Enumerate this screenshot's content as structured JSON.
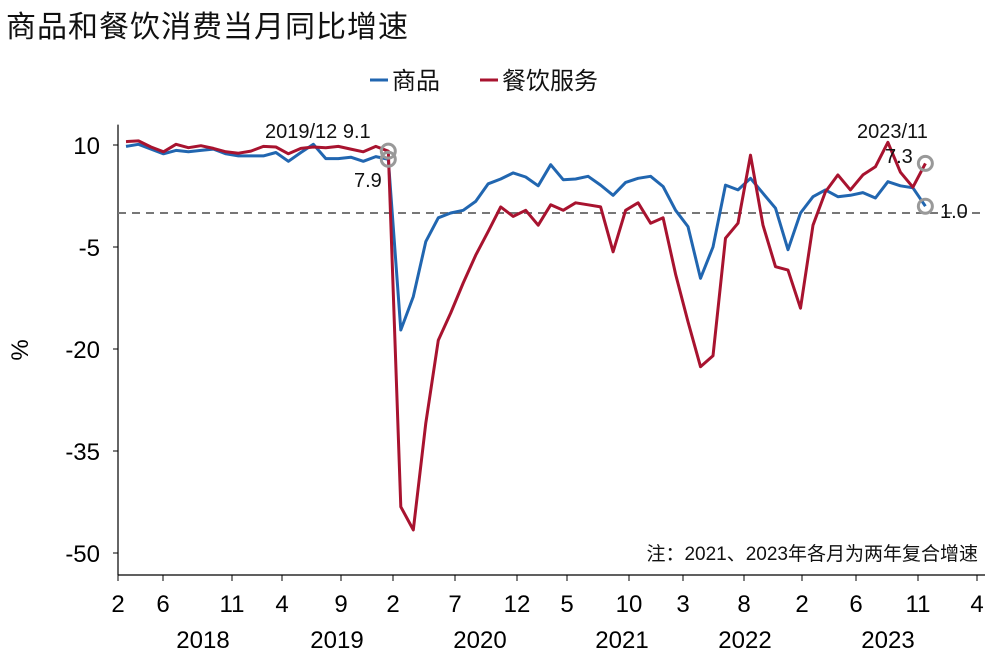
{
  "title": "商品和餐饮消费当月同比增速",
  "chart_data": {
    "type": "line",
    "title": "商品和餐饮消费当月同比增速",
    "ylabel": "%",
    "ylim": [
      -53,
      13
    ],
    "yticks": [
      10,
      -5,
      -20,
      -35,
      -50
    ],
    "ytick_labels": [
      "10",
      "-5",
      "-20",
      "-35",
      "-50"
    ],
    "xtick_labels": [
      "2",
      "6",
      "11",
      "4",
      "9",
      "2",
      "7",
      "12",
      "5",
      "10",
      "3",
      "8",
      "2",
      "6",
      "11",
      "4"
    ],
    "year_labels": [
      "2018",
      "2019",
      "2020",
      "2021",
      "2022",
      "2023"
    ],
    "reference_line": 0,
    "note": "注：2021、2023年各月为两年复合增速",
    "legend_position": "top-center",
    "series": [
      {
        "name": "商品",
        "color": "#2166b0",
        "values": [
          9.8,
          10.1,
          9.4,
          8.7,
          9.2,
          9.0,
          9.2,
          9.4,
          8.7,
          8.4,
          8.4,
          8.4,
          8.9,
          7.6,
          8.9,
          10.1,
          8.0,
          8.0,
          8.2,
          7.6,
          8.3,
          7.9,
          -17.2,
          -12.3,
          -4.2,
          -0.7,
          0.0,
          0.4,
          1.7,
          4.3,
          5.0,
          5.9,
          5.3,
          4.0,
          7.1,
          4.9,
          5.0,
          5.4,
          4.1,
          2.6,
          4.5,
          5.1,
          5.4,
          3.9,
          0.4,
          -2.0,
          -9.6,
          -5.0,
          4.1,
          3.4,
          5.1,
          2.9,
          0.7,
          -5.4,
          0.0,
          2.4,
          3.4,
          2.4,
          2.6,
          3.0,
          2.2,
          4.6,
          4.0,
          3.7,
          1.0
        ]
      },
      {
        "name": "餐饮服务",
        "color": "#a8132f",
        "values": [
          10.5,
          10.6,
          9.7,
          9.0,
          10.1,
          9.6,
          9.9,
          9.5,
          9.0,
          8.8,
          9.1,
          9.8,
          9.7,
          8.7,
          9.5,
          9.7,
          9.6,
          9.8,
          9.4,
          9.0,
          9.8,
          9.1,
          -43.2,
          -46.6,
          -30.9,
          -18.7,
          -14.7,
          -10.3,
          -6.2,
          -2.7,
          0.9,
          -0.5,
          0.4,
          -1.8,
          1.2,
          0.4,
          1.5,
          1.2,
          0.9,
          -5.7,
          0.4,
          1.5,
          -1.5,
          -0.7,
          -9.0,
          -16.0,
          -22.6,
          -21.0,
          -3.7,
          -1.5,
          8.5,
          -1.8,
          -7.9,
          -8.4,
          -14.0,
          -1.8,
          3.1,
          5.6,
          3.4,
          5.6,
          6.8,
          10.4,
          6.0,
          3.8,
          7.3
        ]
      }
    ],
    "annotations": [
      {
        "label": "2019/12 9.1",
        "series": 1,
        "index": 21
      },
      {
        "label": "7.9",
        "series": 0,
        "index": 21
      },
      {
        "label": "2023/11",
        "series": 1,
        "index": 64
      },
      {
        "label": "7.3",
        "series": 1,
        "index": 64
      },
      {
        "label": "1.0",
        "series": 0,
        "index": 64
      }
    ]
  }
}
